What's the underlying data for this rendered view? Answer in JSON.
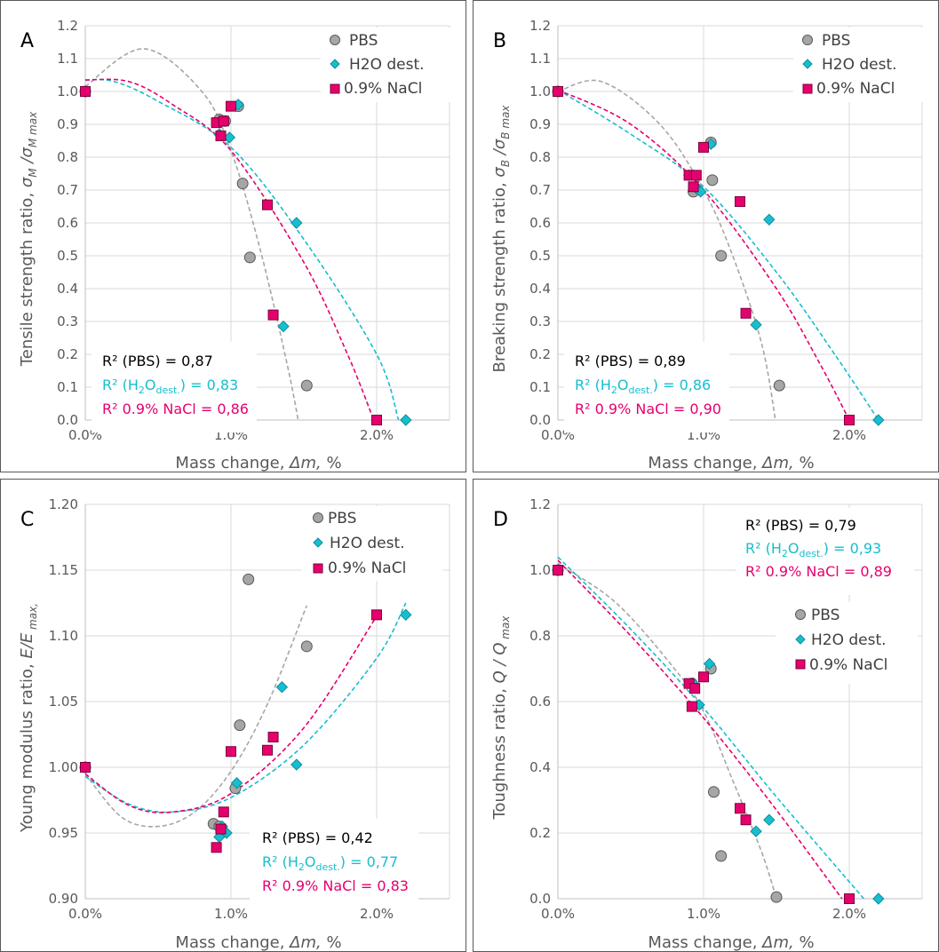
{
  "colors": {
    "PBS": "#a6a6a6",
    "PBS_trend": "#a6a6a6",
    "H2O": "#17becf",
    "NaCl": "#e6006e",
    "grid": "#d9d9d9",
    "text": "#595959"
  },
  "legend_names": [
    "PBS",
    "H2O dest.",
    "0.9% NaCl"
  ],
  "chart_data": [
    {
      "type": "scatter",
      "panel_label": "A",
      "xlabel": "Mass change, Δm, %",
      "ylabel": "Tensile strength ratio, σM /σM max",
      "xlim": [
        0,
        2.5
      ],
      "ylim": [
        0,
        1.2
      ],
      "xticks": [
        "0.0%",
        "1.0%",
        "2.0%"
      ],
      "yticks": [
        "0.0",
        "0.1",
        "0.2",
        "0.3",
        "0.4",
        "0.5",
        "0.6",
        "0.7",
        "0.8",
        "0.9",
        "1.0",
        "1.1",
        "1.2"
      ],
      "legend": "top-right",
      "series": [
        {
          "name": "PBS",
          "marker": "circle",
          "x": [
            0,
            0.92,
            0.96,
            1.05,
            1.08,
            1.13,
            1.52
          ],
          "y": [
            1.0,
            0.915,
            0.91,
            0.955,
            0.72,
            0.495,
            0.105
          ],
          "trend": [
            [
              0,
              1.015
            ],
            [
              0.4,
              1.13
            ],
            [
              0.8,
              1.0
            ],
            [
              1.0,
              0.82
            ],
            [
              1.2,
              0.52
            ],
            [
              1.4,
              0.14
            ],
            [
              1.5,
              -0.1
            ]
          ]
        },
        {
          "name": "H2O dest.",
          "marker": "diamond",
          "x": [
            0,
            0.92,
            0.95,
            0.99,
            1.05,
            1.36,
            1.45,
            2.2
          ],
          "y": [
            1.0,
            0.87,
            0.91,
            0.86,
            0.96,
            0.285,
            0.6,
            0.0
          ],
          "trend": [
            [
              0,
              1.035
            ],
            [
              0.2,
              1.03
            ],
            [
              0.5,
              0.97
            ],
            [
              1.0,
              0.83
            ],
            [
              1.5,
              0.55
            ],
            [
              2.0,
              0.2
            ],
            [
              2.15,
              0.0
            ]
          ]
        },
        {
          "name": "0.9% NaCl",
          "marker": "square",
          "x": [
            0,
            0.9,
            0.93,
            0.95,
            1.0,
            1.25,
            1.29,
            2.0
          ],
          "y": [
            1.0,
            0.905,
            0.865,
            0.91,
            0.955,
            0.655,
            0.32,
            0.0
          ],
          "trend": [
            [
              0,
              1.035
            ],
            [
              0.3,
              1.03
            ],
            [
              0.6,
              0.96
            ],
            [
              1.0,
              0.82
            ],
            [
              1.5,
              0.48
            ],
            [
              1.8,
              0.2
            ],
            [
              1.98,
              0.0
            ]
          ]
        }
      ],
      "r2": {
        "pbs": "R² (PBS) = 0,87",
        "h2o_prefix": "R² (H",
        "h2o_sub1": "2",
        "h2o_mid": "O",
        "h2o_sub2": "dest.",
        "h2o_suffix": ") = 0,83",
        "nacl": "R² 0.9% NaCl = 0,86"
      }
    },
    {
      "type": "scatter",
      "panel_label": "B",
      "xlabel": "Mass change, Δm, %",
      "ylabel": "Breaking strength ratio, σB /σB max",
      "xlim": [
        0,
        2.5
      ],
      "ylim": [
        0,
        1.2
      ],
      "xticks": [
        "0.0%",
        "1.0%",
        "2.0%"
      ],
      "yticks": [
        "0.0",
        "0.1",
        "0.2",
        "0.3",
        "0.4",
        "0.5",
        "0.6",
        "0.7",
        "0.8",
        "0.9",
        "1.0",
        "1.1",
        "1.2"
      ],
      "legend": "top-right",
      "series": [
        {
          "name": "PBS",
          "marker": "circle",
          "x": [
            0,
            0.93,
            1.05,
            1.06,
            1.12,
            1.52
          ],
          "y": [
            1.0,
            0.695,
            0.845,
            0.73,
            0.5,
            0.105
          ],
          "trend": [
            [
              0,
              1.0
            ],
            [
              0.3,
              1.03
            ],
            [
              0.7,
              0.9
            ],
            [
              1.0,
              0.7
            ],
            [
              1.2,
              0.5
            ],
            [
              1.4,
              0.23
            ],
            [
              1.5,
              -0.02
            ]
          ]
        },
        {
          "name": "H2O dest.",
          "marker": "diamond",
          "x": [
            0,
            0.9,
            0.95,
            0.98,
            1.05,
            1.36,
            1.45,
            2.2
          ],
          "y": [
            1.0,
            0.745,
            0.705,
            0.695,
            0.84,
            0.29,
            0.61,
            0.0
          ],
          "trend": [
            [
              0,
              1.005
            ],
            [
              0.5,
              0.87
            ],
            [
              1.0,
              0.71
            ],
            [
              1.5,
              0.45
            ],
            [
              1.9,
              0.2
            ],
            [
              2.2,
              0.0
            ]
          ]
        },
        {
          "name": "0.9% NaCl",
          "marker": "square",
          "x": [
            0,
            0.9,
            0.93,
            0.95,
            1.0,
            1.25,
            1.29,
            2.0
          ],
          "y": [
            1.0,
            0.745,
            0.71,
            0.745,
            0.83,
            0.665,
            0.325,
            0.0
          ],
          "trend": [
            [
              0,
              1.005
            ],
            [
              0.5,
              0.9
            ],
            [
              1.0,
              0.7
            ],
            [
              1.5,
              0.4
            ],
            [
              1.8,
              0.17
            ],
            [
              2.0,
              0.0
            ]
          ]
        }
      ],
      "r2": {
        "pbs": "R² (PBS) = 0,89",
        "h2o_prefix": "R² (H",
        "h2o_sub1": "2",
        "h2o_mid": "O",
        "h2o_sub2": "dest.",
        "h2o_suffix": ") = 0,86",
        "nacl": "R² 0.9% NaCl = 0,90"
      }
    },
    {
      "type": "scatter",
      "panel_label": "C",
      "xlabel": "Mass change, Δm, %",
      "ylabel": "Young modulus ratio, E/E max,",
      "xlim": [
        0,
        2.5
      ],
      "ylim": [
        0.9,
        1.2
      ],
      "xticks": [
        "0.0%",
        "1.0%",
        "2.0%"
      ],
      "yticks": [
        "0.90",
        "0.95",
        "1.00",
        "1.05",
        "1.10",
        "1.15",
        "1.20"
      ],
      "legend": "top-right",
      "series": [
        {
          "name": "PBS",
          "marker": "circle",
          "x": [
            0,
            0.88,
            0.92,
            1.03,
            1.06,
            1.12,
            1.52
          ],
          "y": [
            1.0,
            0.957,
            0.955,
            0.984,
            1.032,
            1.143,
            1.092
          ],
          "trend": [
            [
              0,
              0.995
            ],
            [
              0.25,
              0.962
            ],
            [
              0.5,
              0.955
            ],
            [
              0.75,
              0.966
            ],
            [
              1.0,
              0.997
            ],
            [
              1.25,
              1.048
            ],
            [
              1.52,
              1.123
            ]
          ]
        },
        {
          "name": "H2O dest.",
          "marker": "diamond",
          "x": [
            0,
            0.92,
            0.94,
            0.97,
            1.04,
            1.35,
            1.45,
            2.2
          ],
          "y": [
            1.0,
            0.947,
            0.955,
            0.95,
            0.988,
            1.061,
            1.002,
            1.116
          ],
          "trend": [
            [
              0,
              0.993
            ],
            [
              0.3,
              0.972
            ],
            [
              0.6,
              0.966
            ],
            [
              1.0,
              0.977
            ],
            [
              1.5,
              1.017
            ],
            [
              2.0,
              1.083
            ],
            [
              2.2,
              1.125
            ]
          ]
        },
        {
          "name": "0.9% NaCl",
          "marker": "square",
          "x": [
            0,
            0.9,
            0.93,
            0.95,
            1.0,
            1.25,
            1.29,
            2.0
          ],
          "y": [
            1.0,
            0.939,
            0.953,
            0.966,
            1.012,
            1.013,
            1.023,
            1.116
          ],
          "trend": [
            [
              0,
              0.995
            ],
            [
              0.3,
              0.971
            ],
            [
              0.6,
              0.966
            ],
            [
              1.0,
              0.98
            ],
            [
              1.5,
              1.03
            ],
            [
              2.0,
              1.115
            ]
          ]
        }
      ],
      "r2": {
        "pbs": "R² (PBS) = 0,42",
        "h2o_prefix": "R² (H",
        "h2o_sub1": "2",
        "h2o_mid": "O",
        "h2o_sub2": "dest.",
        "h2o_suffix": ") = 0,77",
        "nacl": "R² 0.9% NaCl = 0,83"
      }
    },
    {
      "type": "scatter",
      "panel_label": "D",
      "xlabel": "Mass change, Δm, %",
      "ylabel": "Toughness ratio, Q / Q max",
      "xlim": [
        0,
        2.5
      ],
      "ylim": [
        0,
        1.2
      ],
      "xticks": [
        "0.0%",
        "1.0%",
        "2.0%"
      ],
      "yticks": [
        "0.0",
        "0.2",
        "0.4",
        "0.6",
        "0.8",
        "1.0",
        "1.2"
      ],
      "legend": "top-right",
      "series": [
        {
          "name": "PBS",
          "marker": "circle",
          "x": [
            0,
            0.92,
            1.05,
            1.07,
            1.12,
            1.5
          ],
          "y": [
            1.0,
            0.655,
            0.7,
            0.325,
            0.13,
            0.005
          ],
          "trend": [
            [
              0,
              1.02
            ],
            [
              0.4,
              0.9
            ],
            [
              0.8,
              0.7
            ],
            [
              1.0,
              0.57
            ],
            [
              1.2,
              0.36
            ],
            [
              1.4,
              0.14
            ],
            [
              1.5,
              0.0
            ]
          ]
        },
        {
          "name": "H2O dest.",
          "marker": "diamond",
          "x": [
            0,
            0.93,
            0.97,
            1.04,
            1.36,
            1.45,
            2.2
          ],
          "y": [
            1.0,
            0.655,
            0.59,
            0.715,
            0.205,
            0.24,
            0.0
          ],
          "trend": [
            [
              0,
              1.04
            ],
            [
              0.5,
              0.82
            ],
            [
              1.0,
              0.58
            ],
            [
              1.5,
              0.31
            ],
            [
              2.1,
              0.0
            ]
          ]
        },
        {
          "name": "0.9% NaCl",
          "marker": "square",
          "x": [
            0,
            0.9,
            0.92,
            0.94,
            1.0,
            1.25,
            1.29,
            2.0
          ],
          "y": [
            1.0,
            0.655,
            0.585,
            0.64,
            0.675,
            0.275,
            0.24,
            0.0
          ],
          "trend": [
            [
              0,
              1.03
            ],
            [
              0.5,
              0.8
            ],
            [
              1.0,
              0.55
            ],
            [
              1.5,
              0.27
            ],
            [
              1.95,
              0.0
            ]
          ]
        }
      ],
      "r2": {
        "pbs": "R² (PBS) = 0,79",
        "h2o_prefix": "R² (H",
        "h2o_sub1": "2",
        "h2o_mid": "O",
        "h2o_sub2": "dest.",
        "h2o_suffix": ") = 0,93",
        "nacl": "R² 0.9% NaCl = 0,89"
      }
    }
  ]
}
